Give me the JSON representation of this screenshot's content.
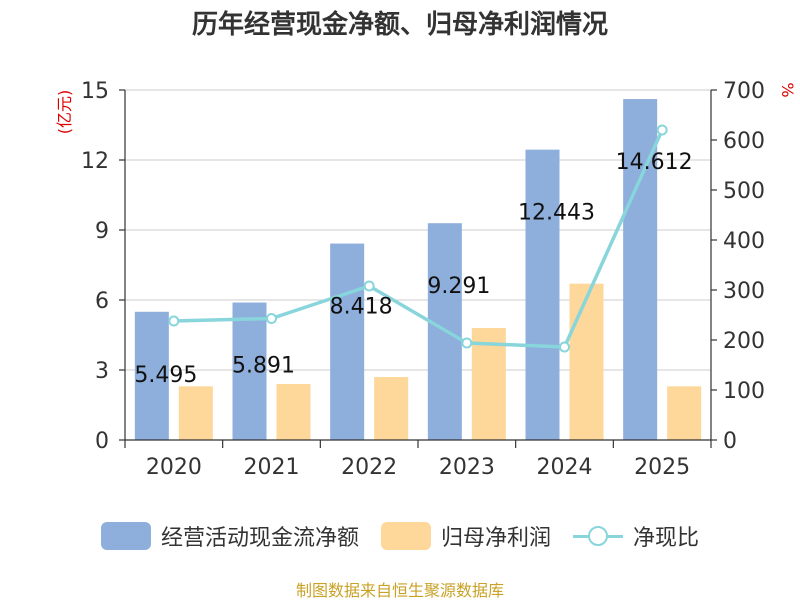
{
  "chart_data": {
    "type": "bar",
    "title": "历年经营现金净额、归母净利润情况",
    "categories": [
      "2020",
      "2021",
      "2022",
      "2023",
      "2024",
      "2025"
    ],
    "series": [
      {
        "name": "经营活动现金流净额",
        "kind": "bar",
        "axis": "left",
        "color": "#8eaedb",
        "values": [
          5.495,
          5.891,
          8.418,
          9.291,
          12.443,
          14.612
        ]
      },
      {
        "name": "归母净利润",
        "kind": "bar",
        "axis": "left",
        "color": "#fdd89a",
        "values": [
          2.3,
          2.4,
          2.7,
          4.8,
          6.7,
          2.3
        ]
      },
      {
        "name": "净现比",
        "kind": "line",
        "axis": "right",
        "color": "#88d5dc",
        "values": [
          238,
          243,
          308,
          194,
          186,
          620
        ]
      }
    ],
    "data_labels": [
      "5.495",
      "5.891",
      "8.418",
      "9.291",
      "12.443",
      "14.612"
    ],
    "left_axis": {
      "label": "(亿元)",
      "min": 0,
      "max": 15,
      "ticks": [
        0,
        3,
        6,
        9,
        12,
        15
      ]
    },
    "right_axis": {
      "label": "%",
      "min": 0,
      "max": 700,
      "ticks": [
        0,
        100,
        200,
        300,
        400,
        500,
        600,
        700
      ]
    },
    "grid": true,
    "legend": "bottom"
  },
  "colors": {
    "axis": "#333333",
    "grid": "#cccccc",
    "axis_label": "#dd0000",
    "source": "#c9a227"
  },
  "source_note": "制图数据来自恒生聚源数据库"
}
